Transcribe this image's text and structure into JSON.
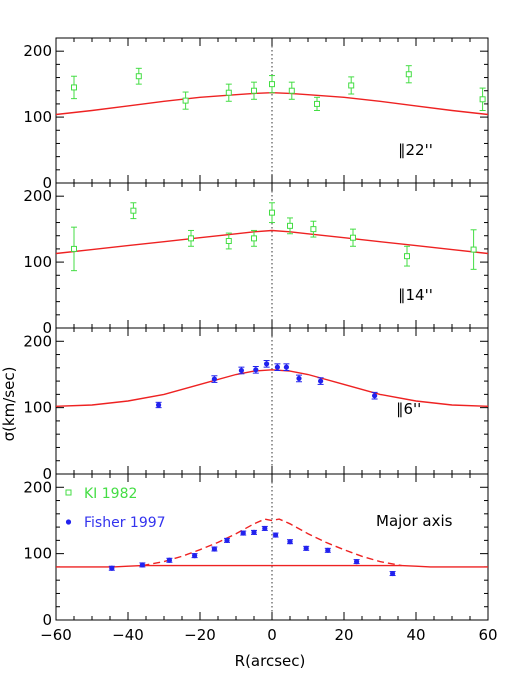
{
  "chart_data": {
    "type": "scatter",
    "xlabel": "R(arcsec)",
    "ylabel": "σ(km/sec)",
    "xlim": [
      -60,
      60
    ],
    "ylim": [
      0,
      220
    ],
    "x_ticks": [
      -60,
      -40,
      -20,
      0,
      20,
      40,
      60
    ],
    "y_ticks": [
      0,
      100,
      200
    ],
    "zero_line": "dotted vertical at R=0",
    "colors": {
      "kl": "#44dd44",
      "fisher": "#2222ee",
      "model": "#ee2222"
    },
    "legend": {
      "placement": "top-left of bottom panel",
      "entries": [
        {
          "label": "KI 1982",
          "marker": "open-square",
          "color": "#44dd44"
        },
        {
          "label": "Fisher 1997",
          "marker": "filled-circle",
          "color": "#2222ee"
        }
      ]
    },
    "panels": [
      {
        "annotation": "∥22''",
        "series": [
          {
            "name": "KI 1982",
            "marker": "open-square",
            "points": [
              {
                "x": -55,
                "y": 145,
                "err": 17
              },
              {
                "x": -37,
                "y": 162,
                "err": 12
              },
              {
                "x": -24,
                "y": 125,
                "err": 13
              },
              {
                "x": -12,
                "y": 137,
                "err": 13
              },
              {
                "x": -5,
                "y": 140,
                "err": 13
              },
              {
                "x": 0,
                "y": 150,
                "err": 13
              },
              {
                "x": 5.5,
                "y": 140,
                "err": 13
              },
              {
                "x": 12.5,
                "y": 120,
                "err": 10
              },
              {
                "x": 22,
                "y": 148,
                "err": 13
              },
              {
                "x": 38,
                "y": 165,
                "err": 13
              },
              {
                "x": 58.5,
                "y": 127,
                "err": 17
              }
            ]
          }
        ],
        "model": {
          "style": "solid",
          "points": [
            [
              -60,
              104
            ],
            [
              -50,
              110
            ],
            [
              -40,
              117
            ],
            [
              -30,
              124
            ],
            [
              -20,
              130
            ],
            [
              -10,
              134
            ],
            [
              -5,
              136
            ],
            [
              0,
              137
            ],
            [
              5,
              136
            ],
            [
              10,
              134
            ],
            [
              20,
              130
            ],
            [
              30,
              124
            ],
            [
              40,
              117
            ],
            [
              50,
              110
            ],
            [
              60,
              104
            ]
          ]
        }
      },
      {
        "annotation": "∥14''",
        "series": [
          {
            "name": "KI 1982",
            "marker": "open-square",
            "points": [
              {
                "x": -55,
                "y": 120,
                "err": 33
              },
              {
                "x": -38.5,
                "y": 178,
                "err": 12
              },
              {
                "x": -22.5,
                "y": 136,
                "err": 12
              },
              {
                "x": -12,
                "y": 132,
                "err": 12
              },
              {
                "x": -5,
                "y": 136,
                "err": 12
              },
              {
                "x": 0,
                "y": 175,
                "err": 15
              },
              {
                "x": 5,
                "y": 155,
                "err": 12
              },
              {
                "x": 11.5,
                "y": 150,
                "err": 12
              },
              {
                "x": 22.5,
                "y": 137,
                "err": 13
              },
              {
                "x": 37.5,
                "y": 109,
                "err": 15
              },
              {
                "x": 56,
                "y": 119,
                "err": 30
              }
            ]
          }
        ],
        "model": {
          "style": "solid",
          "points": [
            [
              -60,
              113
            ],
            [
              -50,
              119
            ],
            [
              -40,
              125
            ],
            [
              -30,
              131
            ],
            [
              -20,
              137
            ],
            [
              -10,
              143
            ],
            [
              -5,
              146
            ],
            [
              0,
              148
            ],
            [
              5,
              146
            ],
            [
              10,
              143
            ],
            [
              20,
              137
            ],
            [
              30,
              131
            ],
            [
              40,
              125
            ],
            [
              50,
              119
            ],
            [
              60,
              113
            ]
          ]
        }
      },
      {
        "annotation": "∥6''",
        "series": [
          {
            "name": "Fisher 1997",
            "marker": "filled-circle",
            "points": [
              {
                "x": -31.5,
                "y": 104,
                "err": 4
              },
              {
                "x": -16,
                "y": 143,
                "err": 5
              },
              {
                "x": -8.5,
                "y": 156,
                "err": 5
              },
              {
                "x": -4.5,
                "y": 157,
                "err": 5
              },
              {
                "x": -1.5,
                "y": 166,
                "err": 5
              },
              {
                "x": 1.5,
                "y": 161,
                "err": 5
              },
              {
                "x": 4,
                "y": 161,
                "err": 5
              },
              {
                "x": 7.5,
                "y": 144,
                "err": 5
              },
              {
                "x": 13.5,
                "y": 140,
                "err": 5
              },
              {
                "x": 28.5,
                "y": 118,
                "err": 5
              }
            ]
          }
        ],
        "model": {
          "style": "solid",
          "points": [
            [
              -60,
              102
            ],
            [
              -50,
              104
            ],
            [
              -40,
              110
            ],
            [
              -30,
              120
            ],
            [
              -20,
              135
            ],
            [
              -10,
              150
            ],
            [
              -5,
              155
            ],
            [
              0,
              157
            ],
            [
              5,
              155
            ],
            [
              10,
              150
            ],
            [
              20,
              135
            ],
            [
              30,
              120
            ],
            [
              40,
              110
            ],
            [
              50,
              104
            ],
            [
              60,
              102
            ]
          ]
        }
      },
      {
        "annotation": "Major axis",
        "series": [
          {
            "name": "Fisher 1997",
            "marker": "filled-circle",
            "points": [
              {
                "x": -44.5,
                "y": 78,
                "err": 3
              },
              {
                "x": -36,
                "y": 83,
                "err": 3
              },
              {
                "x": -28.5,
                "y": 90,
                "err": 3
              },
              {
                "x": -21.5,
                "y": 97,
                "err": 3
              },
              {
                "x": -16,
                "y": 107,
                "err": 3
              },
              {
                "x": -12.5,
                "y": 120,
                "err": 3
              },
              {
                "x": -8,
                "y": 131,
                "err": 3
              },
              {
                "x": -5,
                "y": 132,
                "err": 3
              },
              {
                "x": -2,
                "y": 138,
                "err": 3
              },
              {
                "x": 1,
                "y": 128,
                "err": 3
              },
              {
                "x": 5,
                "y": 118,
                "err": 3
              },
              {
                "x": 9.5,
                "y": 108,
                "err": 3
              },
              {
                "x": 15.5,
                "y": 105,
                "err": 3
              },
              {
                "x": 23.5,
                "y": 88,
                "err": 3
              },
              {
                "x": 33.5,
                "y": 70,
                "err": 3
              }
            ]
          }
        ],
        "model": {
          "style": "solid",
          "points": [
            [
              -60,
              80
            ],
            [
              -50,
              80
            ],
            [
              -44,
              80
            ],
            [
              -40,
              81
            ],
            [
              -36,
              82
            ],
            [
              36,
              82
            ],
            [
              40,
              81
            ],
            [
              44,
              80
            ],
            [
              50,
              80
            ],
            [
              60,
              80
            ]
          ]
        },
        "model_dashed": {
          "style": "dashed",
          "points": [
            [
              -36,
              82
            ],
            [
              -30,
              88
            ],
            [
              -25,
              96
            ],
            [
              -20,
              106
            ],
            [
              -15,
              117
            ],
            [
              -10,
              130
            ],
            [
              -5,
              145
            ],
            [
              -2,
              152
            ],
            [
              0,
              150
            ],
            [
              2,
              152
            ],
            [
              5,
              145
            ],
            [
              10,
              130
            ],
            [
              15,
              117
            ],
            [
              20,
              106
            ],
            [
              25,
              96
            ],
            [
              30,
              88
            ],
            [
              36,
              82
            ]
          ]
        }
      }
    ]
  }
}
